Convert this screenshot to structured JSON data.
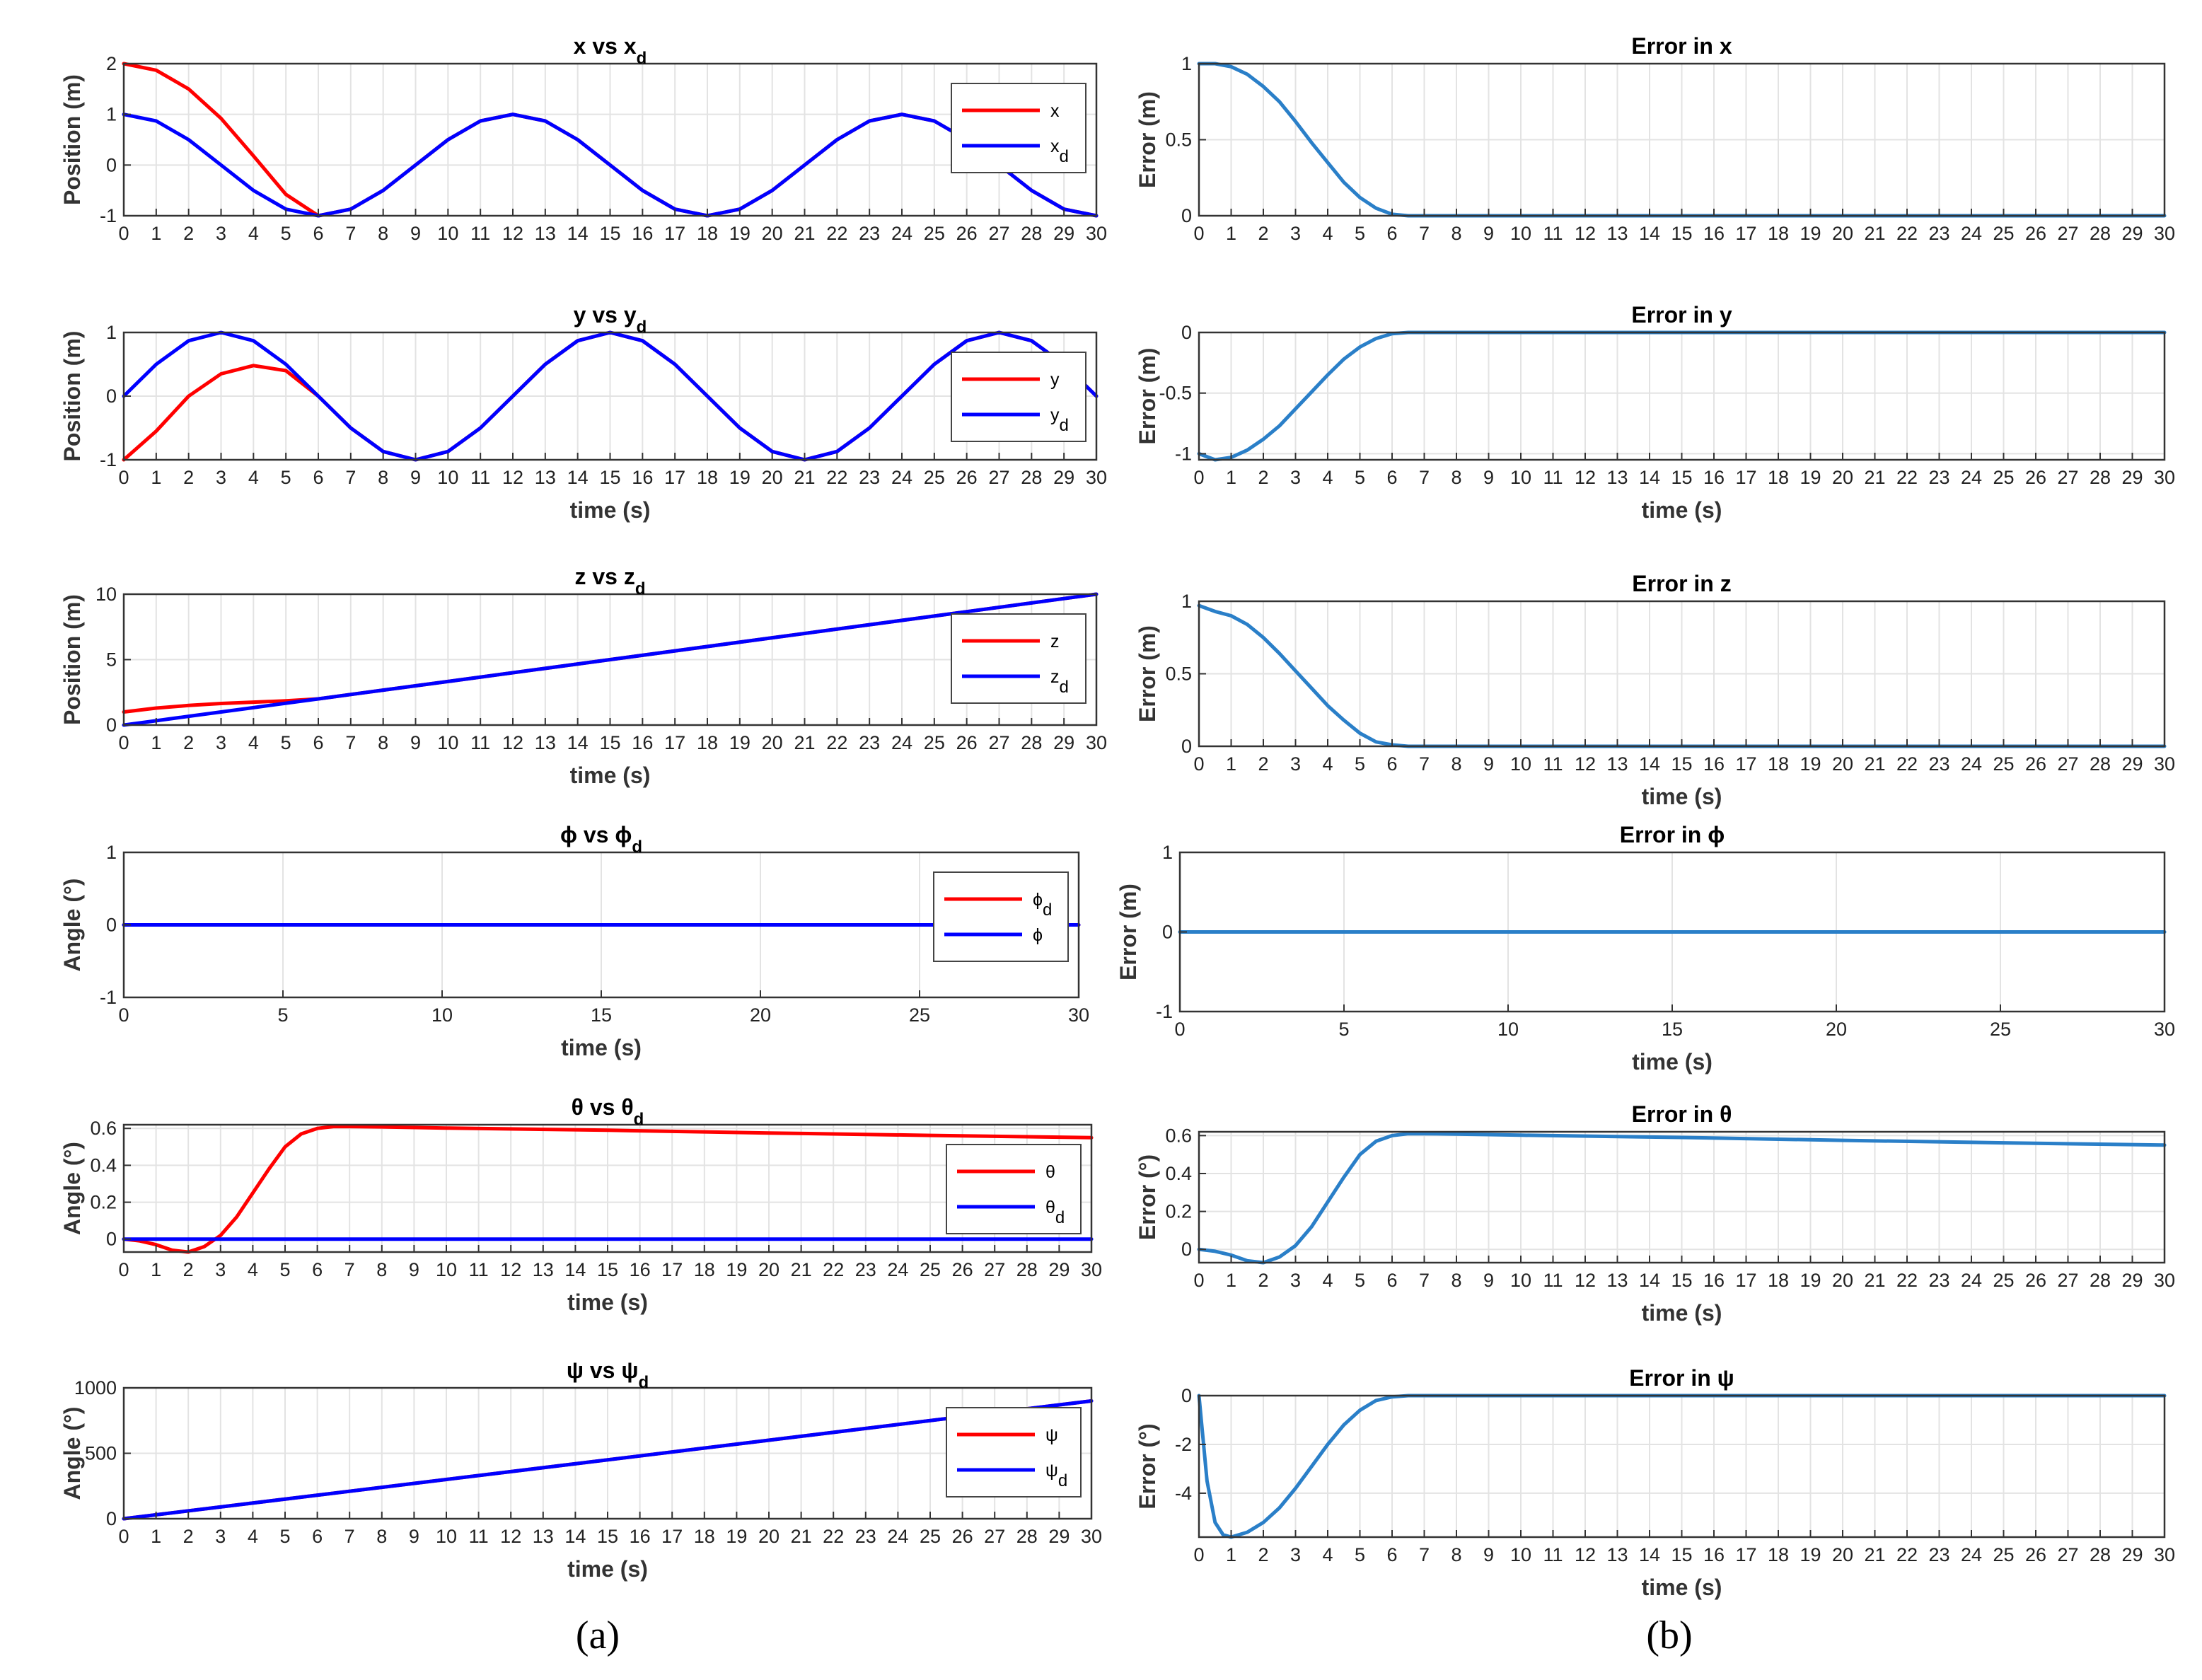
{
  "captions": {
    "a": "(a)",
    "b": "(b)"
  },
  "colors": {
    "red": "#ff0000",
    "blue": "#0000ff",
    "err": "#2a7fc8",
    "grid": "#e3e3e3",
    "axis": "#333333"
  },
  "chart_data": [
    {
      "id": "x",
      "type": "line",
      "title": "x vs x",
      "title_sub": "d",
      "ylabel": "Position (m)",
      "xlabel": "",
      "xlim": [
        0,
        30
      ],
      "ylim": [
        -1,
        2
      ],
      "xticks": [
        0,
        1,
        2,
        3,
        4,
        5,
        6,
        7,
        8,
        9,
        10,
        11,
        12,
        13,
        14,
        15,
        16,
        17,
        18,
        19,
        20,
        21,
        22,
        23,
        24,
        25,
        26,
        27,
        28,
        29,
        30
      ],
      "yticks": [
        -1,
        0,
        1,
        2
      ],
      "grid": true,
      "legend": "top-right",
      "x": [
        0,
        1,
        2,
        3,
        4,
        5,
        6,
        7,
        8,
        9,
        10,
        11,
        12,
        13,
        14,
        15,
        16,
        17,
        18,
        19,
        20,
        21,
        22,
        23,
        24,
        25,
        26,
        27,
        28,
        29,
        30
      ],
      "series": [
        {
          "name": "x",
          "color": "#ff0000",
          "values": [
            2.0,
            1.87,
            1.5,
            0.92,
            0.18,
            -0.58,
            -1.0,
            -0.87,
            -0.5,
            0.0,
            0.5,
            0.87,
            1.0,
            0.87,
            0.5,
            0.0,
            -0.5,
            -0.87,
            -1.0,
            -0.87,
            -0.5,
            0.0,
            0.5,
            0.87,
            1.0,
            0.87,
            0.5,
            0.0,
            -0.5,
            -0.87,
            -1.0
          ]
        },
        {
          "name": "x",
          "name_sub": "d",
          "color": "#0000ff",
          "values": [
            1.0,
            0.87,
            0.5,
            0.0,
            -0.5,
            -0.87,
            -1.0,
            -0.87,
            -0.5,
            0.0,
            0.5,
            0.87,
            1.0,
            0.87,
            0.5,
            0.0,
            -0.5,
            -0.87,
            -1.0,
            -0.87,
            -0.5,
            0.0,
            0.5,
            0.87,
            1.0,
            0.87,
            0.5,
            0.0,
            -0.5,
            -0.87,
            -1.0
          ]
        }
      ]
    },
    {
      "id": "ex",
      "type": "line",
      "title": "Error in x",
      "ylabel": "Error (m)",
      "xlabel": "",
      "xlim": [
        0,
        30
      ],
      "ylim": [
        0,
        1
      ],
      "xticks": [
        0,
        1,
        2,
        3,
        4,
        5,
        6,
        7,
        8,
        9,
        10,
        11,
        12,
        13,
        14,
        15,
        16,
        17,
        18,
        19,
        20,
        21,
        22,
        23,
        24,
        25,
        26,
        27,
        28,
        29,
        30
      ],
      "yticks": [
        0,
        0.5,
        1
      ],
      "grid": true,
      "x": [
        0,
        0.5,
        1,
        1.5,
        2,
        2.5,
        3,
        3.5,
        4,
        4.5,
        5,
        5.5,
        6,
        6.5,
        7,
        8,
        10,
        15,
        20,
        25,
        30
      ],
      "series": [
        {
          "name": "",
          "color": "#2a7fc8",
          "values": [
            1.0,
            1.0,
            0.98,
            0.93,
            0.85,
            0.75,
            0.62,
            0.48,
            0.35,
            0.22,
            0.12,
            0.05,
            0.01,
            0.0,
            0.0,
            0.0,
            0.0,
            0.0,
            0.0,
            0.0,
            0.0
          ]
        }
      ]
    },
    {
      "id": "y",
      "type": "line",
      "title": "y vs y",
      "title_sub": "d",
      "ylabel": "Position (m)",
      "xlabel": "time (s)",
      "xlim": [
        0,
        30
      ],
      "ylim": [
        -1,
        1
      ],
      "xticks": [
        0,
        1,
        2,
        3,
        4,
        5,
        6,
        7,
        8,
        9,
        10,
        11,
        12,
        13,
        14,
        15,
        16,
        17,
        18,
        19,
        20,
        21,
        22,
        23,
        24,
        25,
        26,
        27,
        28,
        29,
        30
      ],
      "yticks": [
        -1,
        0,
        1
      ],
      "grid": true,
      "legend": "top-right",
      "x": [
        0,
        1,
        2,
        3,
        4,
        5,
        6,
        7,
        8,
        9,
        10,
        11,
        12,
        13,
        14,
        15,
        16,
        17,
        18,
        19,
        20,
        21,
        22,
        23,
        24,
        25,
        26,
        27,
        28,
        29,
        30
      ],
      "series": [
        {
          "name": "y",
          "color": "#ff0000",
          "values": [
            -1.0,
            -0.55,
            0.0,
            0.35,
            0.48,
            0.4,
            0.0,
            -0.5,
            -0.87,
            -1.0,
            -0.87,
            -0.5,
            0.0,
            0.5,
            0.87,
            1.0,
            0.87,
            0.5,
            0.0,
            -0.5,
            -0.87,
            -1.0,
            -0.87,
            -0.5,
            0.0,
            0.5,
            0.87,
            1.0,
            0.87,
            0.5,
            0.0
          ]
        },
        {
          "name": "y",
          "name_sub": "d",
          "color": "#0000ff",
          "values": [
            0.0,
            0.5,
            0.87,
            1.0,
            0.87,
            0.5,
            0.0,
            -0.5,
            -0.87,
            -1.0,
            -0.87,
            -0.5,
            0.0,
            0.5,
            0.87,
            1.0,
            0.87,
            0.5,
            0.0,
            -0.5,
            -0.87,
            -1.0,
            -0.87,
            -0.5,
            0.0,
            0.5,
            0.87,
            1.0,
            0.87,
            0.5,
            0.0
          ]
        }
      ]
    },
    {
      "id": "ey",
      "type": "line",
      "title": "Error in y",
      "ylabel": "Error (m)",
      "xlabel": "time (s)",
      "xlim": [
        0,
        30
      ],
      "ylim": [
        -1.05,
        0
      ],
      "xticks": [
        0,
        1,
        2,
        3,
        4,
        5,
        6,
        7,
        8,
        9,
        10,
        11,
        12,
        13,
        14,
        15,
        16,
        17,
        18,
        19,
        20,
        21,
        22,
        23,
        24,
        25,
        26,
        27,
        28,
        29,
        30
      ],
      "yticks": [
        -1,
        -0.5,
        0
      ],
      "grid": true,
      "x": [
        0,
        0.5,
        1,
        1.5,
        2,
        2.5,
        3,
        3.5,
        4,
        4.5,
        5,
        5.5,
        6,
        6.5,
        7,
        8,
        10,
        15,
        20,
        25,
        30
      ],
      "series": [
        {
          "name": "",
          "color": "#2a7fc8",
          "values": [
            -1.0,
            -1.05,
            -1.03,
            -0.97,
            -0.88,
            -0.77,
            -0.63,
            -0.49,
            -0.35,
            -0.22,
            -0.12,
            -0.05,
            -0.01,
            0.0,
            0.0,
            0.0,
            0.0,
            0.0,
            0.0,
            0.0,
            0.0
          ]
        }
      ]
    },
    {
      "id": "z",
      "type": "line",
      "title": "z vs z",
      "title_sub": "d",
      "ylabel": "Position (m)",
      "xlabel": "time (s)",
      "xlim": [
        0,
        30
      ],
      "ylim": [
        0,
        10
      ],
      "xticks": [
        0,
        1,
        2,
        3,
        4,
        5,
        6,
        7,
        8,
        9,
        10,
        11,
        12,
        13,
        14,
        15,
        16,
        17,
        18,
        19,
        20,
        21,
        22,
        23,
        24,
        25,
        26,
        27,
        28,
        29,
        30
      ],
      "yticks": [
        0,
        5,
        10
      ],
      "grid": true,
      "legend": "top-right",
      "x": [
        0,
        1,
        2,
        3,
        4,
        5,
        6,
        8,
        10,
        15,
        20,
        25,
        30
      ],
      "series": [
        {
          "name": "z",
          "color": "#ff0000",
          "values": [
            1.0,
            1.3,
            1.5,
            1.65,
            1.75,
            1.85,
            2.0,
            2.67,
            3.33,
            5.0,
            6.67,
            8.33,
            10.0
          ]
        },
        {
          "name": "z",
          "name_sub": "d",
          "color": "#0000ff",
          "values": [
            0.0,
            0.33,
            0.67,
            1.0,
            1.33,
            1.67,
            2.0,
            2.67,
            3.33,
            5.0,
            6.67,
            8.33,
            10.0
          ]
        }
      ]
    },
    {
      "id": "ez",
      "type": "line",
      "title": "Error in z",
      "ylabel": "Error (m)",
      "xlabel": "time (s)",
      "xlim": [
        0,
        30
      ],
      "ylim": [
        0,
        1
      ],
      "xticks": [
        0,
        1,
        2,
        3,
        4,
        5,
        6,
        7,
        8,
        9,
        10,
        11,
        12,
        13,
        14,
        15,
        16,
        17,
        18,
        19,
        20,
        21,
        22,
        23,
        24,
        25,
        26,
        27,
        28,
        29,
        30
      ],
      "yticks": [
        0,
        0.5,
        1
      ],
      "grid": true,
      "x": [
        0,
        0.5,
        1,
        1.5,
        2,
        2.5,
        3,
        3.5,
        4,
        4.5,
        5,
        5.5,
        6,
        6.5,
        7,
        8,
        10,
        15,
        20,
        25,
        30
      ],
      "series": [
        {
          "name": "",
          "color": "#2a7fc8",
          "values": [
            0.97,
            0.93,
            0.9,
            0.84,
            0.75,
            0.64,
            0.52,
            0.4,
            0.28,
            0.18,
            0.09,
            0.03,
            0.01,
            0.0,
            0.0,
            0.0,
            0.0,
            0.0,
            0.0,
            0.0,
            0.0
          ]
        }
      ]
    },
    {
      "id": "phi",
      "type": "line",
      "title": "ϕ vs ϕ",
      "title_sub": "d",
      "ylabel": "Angle (°)",
      "xlabel": "time (s)",
      "xlim": [
        0,
        30
      ],
      "ylim": [
        -1,
        1
      ],
      "xticks": [
        0,
        5,
        10,
        15,
        20,
        25,
        30
      ],
      "yticks": [
        -1,
        0,
        1
      ],
      "grid": true,
      "legend": "top-right",
      "x": [
        0,
        30
      ],
      "series": [
        {
          "name": "ϕ",
          "name_sub": "d",
          "color": "#ff0000",
          "values": [
            0,
            0
          ]
        },
        {
          "name": "ϕ",
          "color": "#0000ff",
          "values": [
            0,
            0
          ]
        }
      ]
    },
    {
      "id": "ephi",
      "type": "line",
      "title": "Error in ϕ",
      "ylabel": "Error (m)",
      "xlabel": "time (s)",
      "xlim": [
        0,
        30
      ],
      "ylim": [
        -1,
        1
      ],
      "xticks": [
        0,
        5,
        10,
        15,
        20,
        25,
        30
      ],
      "yticks": [
        -1,
        0,
        1
      ],
      "grid": true,
      "x": [
        0,
        30
      ],
      "series": [
        {
          "name": "",
          "color": "#2a7fc8",
          "values": [
            0,
            0
          ]
        }
      ]
    },
    {
      "id": "theta",
      "type": "line",
      "title": "θ vs θ",
      "title_sub": "d",
      "ylabel": "Angle (°)",
      "xlabel": "time (s)",
      "xlim": [
        0,
        30
      ],
      "ylim": [
        -0.07,
        0.62
      ],
      "xticks": [
        0,
        1,
        2,
        3,
        4,
        5,
        6,
        7,
        8,
        9,
        10,
        11,
        12,
        13,
        14,
        15,
        16,
        17,
        18,
        19,
        20,
        21,
        22,
        23,
        24,
        25,
        26,
        27,
        28,
        29,
        30
      ],
      "yticks": [
        0,
        0.2,
        0.4,
        0.6
      ],
      "grid": true,
      "legend": "top-right",
      "x": [
        0,
        0.5,
        1,
        1.5,
        2,
        2.5,
        3,
        3.5,
        4,
        4.5,
        5,
        5.5,
        6,
        6.5,
        7,
        8,
        10,
        15,
        20,
        25,
        30
      ],
      "series": [
        {
          "name": "θ",
          "color": "#ff0000",
          "values": [
            0.0,
            -0.01,
            -0.03,
            -0.06,
            -0.07,
            -0.04,
            0.02,
            0.12,
            0.25,
            0.38,
            0.5,
            0.57,
            0.6,
            0.61,
            0.61,
            0.608,
            0.602,
            0.59,
            0.575,
            0.562,
            0.55
          ]
        },
        {
          "name": "θ",
          "name_sub": "d",
          "color": "#0000ff",
          "values": [
            0,
            0,
            0,
            0,
            0,
            0,
            0,
            0,
            0,
            0,
            0,
            0,
            0,
            0,
            0,
            0,
            0,
            0,
            0,
            0,
            0
          ]
        }
      ]
    },
    {
      "id": "etheta",
      "type": "line",
      "title": "Error in θ",
      "ylabel": "Error (°)",
      "xlabel": "time (s)",
      "xlim": [
        0,
        30
      ],
      "ylim": [
        -0.07,
        0.62
      ],
      "xticks": [
        0,
        1,
        2,
        3,
        4,
        5,
        6,
        7,
        8,
        9,
        10,
        11,
        12,
        13,
        14,
        15,
        16,
        17,
        18,
        19,
        20,
        21,
        22,
        23,
        24,
        25,
        26,
        27,
        28,
        29,
        30
      ],
      "yticks": [
        0,
        0.2,
        0.4,
        0.6
      ],
      "grid": true,
      "x": [
        0,
        0.5,
        1,
        1.5,
        2,
        2.5,
        3,
        3.5,
        4,
        4.5,
        5,
        5.5,
        6,
        6.5,
        7,
        8,
        10,
        15,
        20,
        25,
        30
      ],
      "series": [
        {
          "name": "",
          "color": "#2a7fc8",
          "values": [
            0.0,
            -0.01,
            -0.03,
            -0.06,
            -0.07,
            -0.04,
            0.02,
            0.12,
            0.25,
            0.38,
            0.5,
            0.57,
            0.6,
            0.61,
            0.61,
            0.608,
            0.602,
            0.59,
            0.575,
            0.562,
            0.55
          ]
        }
      ]
    },
    {
      "id": "psi",
      "type": "line",
      "title": "ψ vs ψ",
      "title_sub": "d",
      "ylabel": "Angle (°)",
      "xlabel": "time (s)",
      "xlim": [
        0,
        30
      ],
      "ylim": [
        0,
        1000
      ],
      "xticks": [
        0,
        1,
        2,
        3,
        4,
        5,
        6,
        7,
        8,
        9,
        10,
        11,
        12,
        13,
        14,
        15,
        16,
        17,
        18,
        19,
        20,
        21,
        22,
        23,
        24,
        25,
        26,
        27,
        28,
        29,
        30
      ],
      "yticks": [
        0,
        500,
        1000
      ],
      "grid": true,
      "legend": "top-right",
      "x": [
        0,
        10,
        20,
        30
      ],
      "series": [
        {
          "name": "ψ",
          "color": "#ff0000",
          "values": [
            0,
            300,
            600,
            900
          ]
        },
        {
          "name": "ψ",
          "name_sub": "d",
          "color": "#0000ff",
          "values": [
            0,
            300,
            600,
            900
          ]
        }
      ]
    },
    {
      "id": "epsi",
      "type": "line",
      "title": "Error in ψ",
      "ylabel": "Error (°)",
      "xlabel": "time (s)",
      "xlim": [
        0,
        30
      ],
      "ylim": [
        -5.8,
        0
      ],
      "xticks": [
        0,
        1,
        2,
        3,
        4,
        5,
        6,
        7,
        8,
        9,
        10,
        11,
        12,
        13,
        14,
        15,
        16,
        17,
        18,
        19,
        20,
        21,
        22,
        23,
        24,
        25,
        26,
        27,
        28,
        29,
        30
      ],
      "yticks": [
        -4,
        -2,
        0
      ],
      "grid": true,
      "x": [
        0,
        0.25,
        0.5,
        0.75,
        1,
        1.5,
        2,
        2.5,
        3,
        3.5,
        4,
        4.5,
        5,
        5.5,
        6,
        6.5,
        7,
        8,
        10,
        15,
        20,
        25,
        30
      ],
      "series": [
        {
          "name": "",
          "color": "#2a7fc8",
          "values": [
            0,
            -3.5,
            -5.2,
            -5.7,
            -5.8,
            -5.6,
            -5.2,
            -4.6,
            -3.8,
            -2.9,
            -2.0,
            -1.2,
            -0.6,
            -0.2,
            -0.05,
            0,
            0,
            0,
            0,
            0,
            0,
            0,
            0
          ]
        }
      ]
    }
  ]
}
